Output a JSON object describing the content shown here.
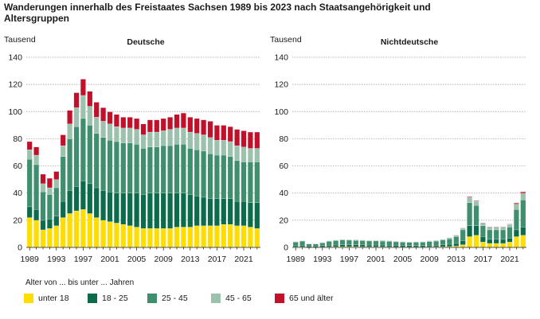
{
  "title": "Wanderungen innerhalb  des Freistaates Sachsen 1989 bis  2023 nach Staatsangehörigkeit und Altersgruppen",
  "legend": {
    "title": "Alter von ... bis unter ... Jahren",
    "items": [
      {
        "label": "unter 18",
        "color": "#ffdd00"
      },
      {
        "label": "18 - 25",
        "color": "#0b6b4a"
      },
      {
        "label": "25 - 45",
        "color": "#3f8f6e"
      },
      {
        "label": "45 - 65",
        "color": "#9cc2ae"
      },
      {
        "label": "65 und älter",
        "color": "#c0102a"
      }
    ]
  },
  "chart_data": [
    {
      "type": "bar",
      "stacked": true,
      "title": "Deutsche",
      "ylabel": "Tausend",
      "ylim": [
        0,
        140
      ],
      "yticks": [
        0,
        20,
        40,
        60,
        80,
        100,
        120,
        140
      ],
      "categories": [
        "1989",
        "1990",
        "1991",
        "1992",
        "1993",
        "1994",
        "1995",
        "1996",
        "1997",
        "1998",
        "1999",
        "2000",
        "2001",
        "2002",
        "2003",
        "2004",
        "2005",
        "2006",
        "2007",
        "2008",
        "2009",
        "2010",
        "2011",
        "2012",
        "2013",
        "2014",
        "2015",
        "2016",
        "2017",
        "2018",
        "2019",
        "2020",
        "2021",
        "2022",
        "2023"
      ],
      "xtick_labels": [
        "1989",
        "1993",
        "1997",
        "2001",
        "2005",
        "2009",
        "2013",
        "2017",
        "2021"
      ],
      "series": [
        {
          "name": "unter 18",
          "color": "#ffdd00",
          "values": [
            22,
            20,
            13,
            14,
            16,
            22,
            25,
            27,
            28,
            25,
            22,
            20,
            19,
            18,
            17,
            16,
            15,
            14,
            14,
            14,
            14,
            14,
            15,
            15,
            15,
            16,
            16,
            16,
            16,
            17,
            17,
            16,
            16,
            15,
            14
          ]
        },
        {
          "name": "18 - 25",
          "color": "#0b6b4a",
          "values": [
            8,
            8,
            7,
            7,
            7,
            12,
            17,
            18,
            21,
            22,
            22,
            22,
            22,
            22,
            23,
            24,
            25,
            25,
            26,
            26,
            26,
            26,
            25,
            25,
            24,
            22,
            21,
            20,
            20,
            19,
            19,
            18,
            18,
            18,
            19
          ]
        },
        {
          "name": "25 - 45",
          "color": "#3f8f6e",
          "values": [
            35,
            33,
            21,
            18,
            21,
            33,
            38,
            44,
            46,
            43,
            40,
            39,
            38,
            38,
            37,
            37,
            36,
            34,
            34,
            34,
            35,
            35,
            36,
            36,
            34,
            34,
            34,
            33,
            32,
            32,
            31,
            30,
            29,
            30,
            30
          ]
        },
        {
          "name": "45 - 65",
          "color": "#9cc2ae",
          "values": [
            7,
            7,
            6,
            5,
            6,
            8,
            11,
            14,
            17,
            14,
            12,
            12,
            12,
            11,
            11,
            11,
            11,
            10,
            11,
            11,
            11,
            12,
            12,
            12,
            12,
            12,
            12,
            12,
            11,
            11,
            11,
            11,
            11,
            10,
            10
          ]
        },
        {
          "name": "65 und älter",
          "color": "#c0102a",
          "values": [
            6,
            6,
            7,
            7,
            6,
            8,
            10,
            11,
            12,
            11,
            11,
            10,
            9,
            9,
            8,
            8,
            8,
            8,
            9,
            9,
            9,
            9,
            10,
            11,
            11,
            11,
            11,
            12,
            11,
            11,
            11,
            12,
            12,
            12,
            12
          ]
        }
      ]
    },
    {
      "type": "bar",
      "stacked": true,
      "title": "Nichtdeutsche",
      "ylabel": "Tausend",
      "ylim": [
        0,
        140
      ],
      "yticks": [
        0,
        20,
        40,
        60,
        80,
        100,
        120,
        140
      ],
      "categories": [
        "1989",
        "1990",
        "1991",
        "1992",
        "1993",
        "1994",
        "1995",
        "1996",
        "1997",
        "1998",
        "1999",
        "2000",
        "2001",
        "2002",
        "2003",
        "2004",
        "2005",
        "2006",
        "2007",
        "2008",
        "2009",
        "2010",
        "2011",
        "2012",
        "2013",
        "2014",
        "2015",
        "2016",
        "2017",
        "2018",
        "2019",
        "2020",
        "2021",
        "2022",
        "2023"
      ],
      "xtick_labels": [
        "1989",
        "1993",
        "1997",
        "2001",
        "2005",
        "2009",
        "2013",
        "2017",
        "2021"
      ],
      "series": [
        {
          "name": "unter 18",
          "color": "#ffdd00",
          "values": [
            0.5,
            0.5,
            0.3,
            0.3,
            0.4,
            0.5,
            0.5,
            0.6,
            0.6,
            0.6,
            0.5,
            0.5,
            0.5,
            0.5,
            0.5,
            0.4,
            0.4,
            0.4,
            0.4,
            0.4,
            0.5,
            0.5,
            0.6,
            0.7,
            1,
            2,
            8,
            9,
            4,
            3,
            3,
            3,
            4,
            8,
            9
          ]
        },
        {
          "name": "18 - 25",
          "color": "#0b6b4a",
          "values": [
            1,
            1.2,
            0.8,
            0.8,
            1,
            1.2,
            1.3,
            1.4,
            1.4,
            1.4,
            1.4,
            1.3,
            1.3,
            1.3,
            1.2,
            1.2,
            1.1,
            1,
            1,
            1,
            1.1,
            1.2,
            1.4,
            1.7,
            2,
            3,
            8,
            7,
            4,
            3,
            3,
            3,
            3,
            5,
            6
          ]
        },
        {
          "name": "25 - 45",
          "color": "#3f8f6e",
          "values": [
            2.5,
            3,
            1.5,
            1.5,
            2,
            2.8,
            3.2,
            3.5,
            3.4,
            3.2,
            3.1,
            3,
            3,
            2.9,
            2.8,
            2.6,
            2.4,
            2.3,
            2.4,
            2.5,
            2.7,
            3,
            3.5,
            4,
            5,
            8,
            17,
            15,
            8,
            7,
            7,
            7,
            8,
            15,
            20
          ]
        },
        {
          "name": "45 - 65",
          "color": "#9cc2ae",
          "values": [
            0.3,
            0.3,
            0.2,
            0.2,
            0.3,
            0.4,
            0.5,
            0.5,
            0.5,
            0.5,
            0.5,
            0.5,
            0.5,
            0.5,
            0.5,
            0.5,
            0.5,
            0.5,
            0.5,
            0.5,
            0.6,
            0.6,
            0.7,
            0.8,
            0.9,
            1.2,
            4,
            3,
            2,
            2,
            2,
            2,
            2,
            4,
            5
          ]
        },
        {
          "name": "65 und älter",
          "color": "#c0102a",
          "values": [
            0.1,
            0.1,
            0.1,
            0.1,
            0.1,
            0.1,
            0.1,
            0.1,
            0.1,
            0.1,
            0.1,
            0.1,
            0.1,
            0.1,
            0.1,
            0.1,
            0.1,
            0.1,
            0.1,
            0.1,
            0.1,
            0.1,
            0.1,
            0.1,
            0.2,
            0.2,
            0.5,
            0.5,
            0.3,
            0.3,
            0.3,
            0.3,
            0.3,
            0.8,
            1
          ]
        }
      ]
    }
  ]
}
